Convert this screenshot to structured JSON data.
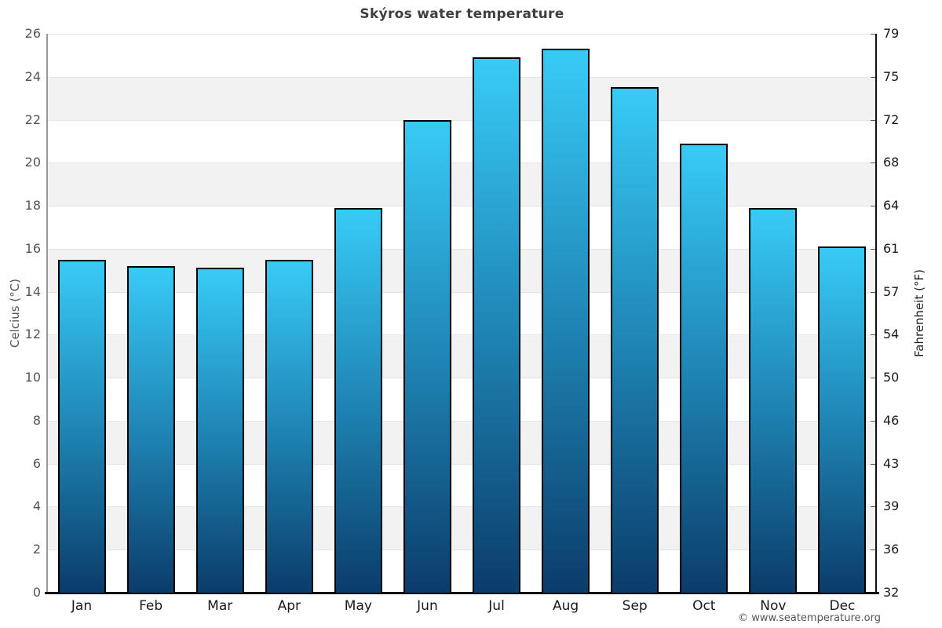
{
  "chart_data": {
    "type": "bar",
    "title": "Skýros water temperature",
    "categories": [
      "Jan",
      "Feb",
      "Mar",
      "Apr",
      "May",
      "Jun",
      "Jul",
      "Aug",
      "Sep",
      "Oct",
      "Nov",
      "Dec"
    ],
    "values": [
      15.5,
      15.2,
      15.1,
      15.5,
      17.9,
      22.0,
      24.9,
      25.3,
      23.5,
      20.9,
      17.9,
      16.1
    ],
    "unit": "°C",
    "ylabel_left": "Celcius (°C)",
    "ylabel_right": "Fahrenheit (°F)",
    "ylim": [
      0,
      26
    ],
    "yticks_celsius": [
      0,
      2,
      4,
      6,
      8,
      10,
      12,
      14,
      16,
      18,
      20,
      22,
      24,
      26
    ],
    "yticks_fahrenheit": [
      "32",
      "36",
      "39",
      "43",
      "46",
      "50",
      "54",
      "57",
      "61",
      "64",
      "68",
      "72",
      "75",
      "79"
    ],
    "grid": "horizontal-bands-alternating",
    "legend": "none",
    "colors": {
      "bar_gradient_top": "#38CBF7",
      "bar_gradient_mid": "#1E83B2",
      "bar_gradient_bottom": "#0B3C6A",
      "bar_border": "#000000",
      "band_shade": "#f2f2f2",
      "gridline": "#e4e4e4",
      "axis_left_line": "#999999",
      "axis_right_line": "#111111",
      "baseline": "#000000",
      "title_text": "#3f3f3f",
      "tick_text_left": "#555555",
      "tick_text_right": "#1a1a1a"
    },
    "footer": "© www.seatemperature.org"
  }
}
